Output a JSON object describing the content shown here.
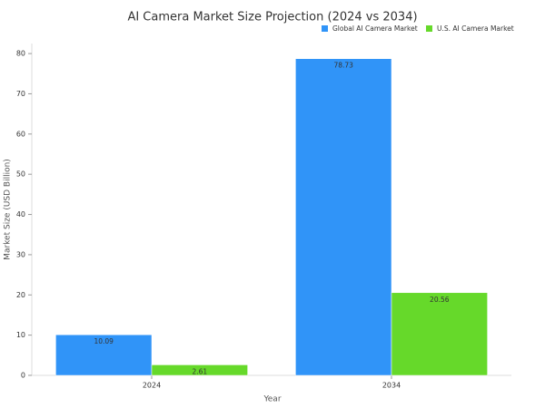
{
  "chart_data": {
    "type": "bar",
    "title": "AI Camera Market Size Projection (2024 vs 2034)",
    "x_label": "Year",
    "y_label": "Market Size (USD Billion)",
    "categories": [
      "2024",
      "2034"
    ],
    "series": [
      {
        "name": "Global AI Camera Market",
        "color": "#3094f8",
        "values": [
          10.09,
          78.73
        ]
      },
      {
        "name": "U.S. AI Camera Market",
        "color": "#66d92a",
        "values": [
          2.61,
          20.56
        ]
      }
    ],
    "ylim": [
      0,
      82.5
    ],
    "yticks": [
      0,
      10,
      20,
      30,
      40,
      50,
      60,
      70,
      80
    ],
    "grid": false,
    "legend": "top-right"
  }
}
